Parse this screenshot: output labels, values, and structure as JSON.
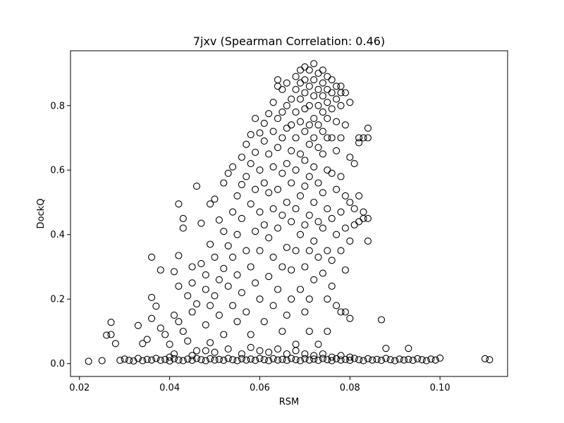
{
  "chart_data": {
    "type": "scatter",
    "title": "7jxv (Spearman Correlation: 0.46)",
    "xlabel": "RSM",
    "ylabel": "DockQ",
    "xlim": [
      0.018,
      0.115
    ],
    "ylim": [
      -0.04,
      0.97
    ],
    "xticks": [
      0.02,
      0.04,
      0.06,
      0.08,
      0.1
    ],
    "xtick_labels": [
      "0.02",
      "0.04",
      "0.06",
      "0.08",
      "0.10"
    ],
    "yticks": [
      0.0,
      0.2,
      0.4,
      0.6,
      0.8
    ],
    "ytick_labels": [
      "0.0",
      "0.2",
      "0.4",
      "0.6",
      "0.8"
    ],
    "grid": false,
    "marker": "open-circle",
    "marker_color": "#000000",
    "points": [
      [
        0.022,
        0.007
      ],
      [
        0.025,
        0.009
      ],
      [
        0.026,
        0.088
      ],
      [
        0.027,
        0.128
      ],
      [
        0.027,
        0.09
      ],
      [
        0.028,
        0.062
      ],
      [
        0.029,
        0.01
      ],
      [
        0.032,
        0.008
      ],
      [
        0.033,
        0.118
      ],
      [
        0.034,
        0.062
      ],
      [
        0.035,
        0.075
      ],
      [
        0.036,
        0.33
      ],
      [
        0.036,
        0.205
      ],
      [
        0.036,
        0.14
      ],
      [
        0.037,
        0.178
      ],
      [
        0.038,
        0.29
      ],
      [
        0.038,
        0.11
      ],
      [
        0.039,
        0.09
      ],
      [
        0.04,
        0.06
      ],
      [
        0.04,
        0.02
      ],
      [
        0.041,
        0.285
      ],
      [
        0.041,
        0.15
      ],
      [
        0.042,
        0.495
      ],
      [
        0.042,
        0.335
      ],
      [
        0.042,
        0.24
      ],
      [
        0.042,
        0.13
      ],
      [
        0.043,
        0.45
      ],
      [
        0.043,
        0.42
      ],
      [
        0.043,
        0.1
      ],
      [
        0.044,
        0.21
      ],
      [
        0.044,
        0.07
      ],
      [
        0.045,
        0.3
      ],
      [
        0.045,
        0.25
      ],
      [
        0.045,
        0.16
      ],
      [
        0.046,
        0.55
      ],
      [
        0.046,
        0.185
      ],
      [
        0.046,
        0.04
      ],
      [
        0.047,
        0.435
      ],
      [
        0.047,
        0.31
      ],
      [
        0.048,
        0.275
      ],
      [
        0.048,
        0.23
      ],
      [
        0.048,
        0.12
      ],
      [
        0.049,
        0.495
      ],
      [
        0.049,
        0.37
      ],
      [
        0.049,
        0.18
      ],
      [
        0.049,
        0.065
      ],
      [
        0.05,
        0.51
      ],
      [
        0.05,
        0.33
      ],
      [
        0.05,
        0.21
      ],
      [
        0.051,
        0.445
      ],
      [
        0.051,
        0.26
      ],
      [
        0.051,
        0.15
      ],
      [
        0.052,
        0.56
      ],
      [
        0.052,
        0.41
      ],
      [
        0.052,
        0.295
      ],
      [
        0.052,
        0.09
      ],
      [
        0.053,
        0.59
      ],
      [
        0.053,
        0.365
      ],
      [
        0.053,
        0.24
      ],
      [
        0.054,
        0.61
      ],
      [
        0.054,
        0.47
      ],
      [
        0.054,
        0.33
      ],
      [
        0.054,
        0.18
      ],
      [
        0.055,
        0.52
      ],
      [
        0.055,
        0.4
      ],
      [
        0.055,
        0.275
      ],
      [
        0.055,
        0.13
      ],
      [
        0.056,
        0.64
      ],
      [
        0.056,
        0.555
      ],
      [
        0.056,
        0.45
      ],
      [
        0.056,
        0.22
      ],
      [
        0.057,
        0.68
      ],
      [
        0.057,
        0.58
      ],
      [
        0.057,
        0.35
      ],
      [
        0.057,
        0.16
      ],
      [
        0.058,
        0.71
      ],
      [
        0.058,
        0.62
      ],
      [
        0.058,
        0.495
      ],
      [
        0.058,
        0.3
      ],
      [
        0.058,
        0.09
      ],
      [
        0.059,
        0.76
      ],
      [
        0.059,
        0.655
      ],
      [
        0.059,
        0.54
      ],
      [
        0.059,
        0.41
      ],
      [
        0.059,
        0.25
      ],
      [
        0.06,
        0.715
      ],
      [
        0.06,
        0.6
      ],
      [
        0.06,
        0.47
      ],
      [
        0.06,
        0.35
      ],
      [
        0.06,
        0.2
      ],
      [
        0.061,
        0.745
      ],
      [
        0.061,
        0.69
      ],
      [
        0.061,
        0.56
      ],
      [
        0.061,
        0.43
      ],
      [
        0.061,
        0.13
      ],
      [
        0.062,
        0.775
      ],
      [
        0.062,
        0.65
      ],
      [
        0.062,
        0.53
      ],
      [
        0.062,
        0.39
      ],
      [
        0.062,
        0.27
      ],
      [
        0.063,
        0.81
      ],
      [
        0.063,
        0.72
      ],
      [
        0.063,
        0.61
      ],
      [
        0.063,
        0.48
      ],
      [
        0.063,
        0.33
      ],
      [
        0.063,
        0.18
      ],
      [
        0.064,
        0.88
      ],
      [
        0.064,
        0.86
      ],
      [
        0.064,
        0.76
      ],
      [
        0.064,
        0.67
      ],
      [
        0.064,
        0.54
      ],
      [
        0.064,
        0.42
      ],
      [
        0.064,
        0.23
      ],
      [
        0.065,
        0.85
      ],
      [
        0.065,
        0.78
      ],
      [
        0.065,
        0.7
      ],
      [
        0.065,
        0.59
      ],
      [
        0.065,
        0.46
      ],
      [
        0.065,
        0.3
      ],
      [
        0.065,
        0.1
      ],
      [
        0.066,
        0.87
      ],
      [
        0.066,
        0.8
      ],
      [
        0.066,
        0.73
      ],
      [
        0.066,
        0.62
      ],
      [
        0.066,
        0.5
      ],
      [
        0.066,
        0.36
      ],
      [
        0.066,
        0.15
      ],
      [
        0.067,
        0.82
      ],
      [
        0.067,
        0.74
      ],
      [
        0.067,
        0.66
      ],
      [
        0.067,
        0.56
      ],
      [
        0.067,
        0.44
      ],
      [
        0.067,
        0.29
      ],
      [
        0.067,
        0.2
      ],
      [
        0.068,
        0.89
      ],
      [
        0.068,
        0.85
      ],
      [
        0.068,
        0.78
      ],
      [
        0.068,
        0.7
      ],
      [
        0.068,
        0.6
      ],
      [
        0.068,
        0.48
      ],
      [
        0.068,
        0.35
      ],
      [
        0.068,
        0.06
      ],
      [
        0.069,
        0.91
      ],
      [
        0.069,
        0.87
      ],
      [
        0.069,
        0.82
      ],
      [
        0.069,
        0.75
      ],
      [
        0.069,
        0.65
      ],
      [
        0.069,
        0.52
      ],
      [
        0.069,
        0.4
      ],
      [
        0.069,
        0.23
      ],
      [
        0.07,
        0.92
      ],
      [
        0.07,
        0.88
      ],
      [
        0.07,
        0.84
      ],
      [
        0.07,
        0.79
      ],
      [
        0.07,
        0.72
      ],
      [
        0.07,
        0.63
      ],
      [
        0.07,
        0.55
      ],
      [
        0.07,
        0.43
      ],
      [
        0.07,
        0.3
      ],
      [
        0.07,
        0.16
      ],
      [
        0.071,
        0.91
      ],
      [
        0.071,
        0.86
      ],
      [
        0.071,
        0.8
      ],
      [
        0.071,
        0.74
      ],
      [
        0.071,
        0.68
      ],
      [
        0.071,
        0.58
      ],
      [
        0.071,
        0.46
      ],
      [
        0.071,
        0.35
      ],
      [
        0.071,
        0.2
      ],
      [
        0.071,
        0.1
      ],
      [
        0.072,
        0.93
      ],
      [
        0.072,
        0.88
      ],
      [
        0.072,
        0.83
      ],
      [
        0.072,
        0.76
      ],
      [
        0.072,
        0.7
      ],
      [
        0.072,
        0.61
      ],
      [
        0.072,
        0.5
      ],
      [
        0.072,
        0.38
      ],
      [
        0.072,
        0.26
      ],
      [
        0.073,
        0.9
      ],
      [
        0.073,
        0.85
      ],
      [
        0.073,
        0.8
      ],
      [
        0.073,
        0.74
      ],
      [
        0.073,
        0.67
      ],
      [
        0.073,
        0.56
      ],
      [
        0.073,
        0.44
      ],
      [
        0.073,
        0.33
      ],
      [
        0.073,
        0.06
      ],
      [
        0.074,
        0.91
      ],
      [
        0.074,
        0.87
      ],
      [
        0.074,
        0.83
      ],
      [
        0.074,
        0.78
      ],
      [
        0.074,
        0.72
      ],
      [
        0.074,
        0.65
      ],
      [
        0.074,
        0.53
      ],
      [
        0.074,
        0.42
      ],
      [
        0.074,
        0.28
      ],
      [
        0.075,
        0.89
      ],
      [
        0.075,
        0.85
      ],
      [
        0.075,
        0.81
      ],
      [
        0.075,
        0.76
      ],
      [
        0.075,
        0.7
      ],
      [
        0.075,
        0.6
      ],
      [
        0.075,
        0.48
      ],
      [
        0.075,
        0.35
      ],
      [
        0.075,
        0.2
      ],
      [
        0.075,
        0.1
      ],
      [
        0.076,
        0.88
      ],
      [
        0.076,
        0.84
      ],
      [
        0.076,
        0.79
      ],
      [
        0.076,
        0.7
      ],
      [
        0.076,
        0.59
      ],
      [
        0.076,
        0.45
      ],
      [
        0.076,
        0.32
      ],
      [
        0.076,
        0.24
      ],
      [
        0.077,
        0.86
      ],
      [
        0.077,
        0.82
      ],
      [
        0.077,
        0.75
      ],
      [
        0.077,
        0.66
      ],
      [
        0.077,
        0.54
      ],
      [
        0.077,
        0.4
      ],
      [
        0.077,
        0.18
      ],
      [
        0.078,
        0.86
      ],
      [
        0.078,
        0.84
      ],
      [
        0.078,
        0.8
      ],
      [
        0.078,
        0.7
      ],
      [
        0.078,
        0.58
      ],
      [
        0.078,
        0.47
      ],
      [
        0.078,
        0.35
      ],
      [
        0.078,
        0.16
      ],
      [
        0.079,
        0.84
      ],
      [
        0.079,
        0.74
      ],
      [
        0.079,
        0.52
      ],
      [
        0.079,
        0.42
      ],
      [
        0.079,
        0.29
      ],
      [
        0.079,
        0.16
      ],
      [
        0.08,
        0.81
      ],
      [
        0.08,
        0.64
      ],
      [
        0.08,
        0.5
      ],
      [
        0.08,
        0.38
      ],
      [
        0.08,
        0.14
      ],
      [
        0.081,
        0.62
      ],
      [
        0.081,
        0.48
      ],
      [
        0.081,
        0.43
      ],
      [
        0.082,
        0.7
      ],
      [
        0.082,
        0.685
      ],
      [
        0.082,
        0.52
      ],
      [
        0.082,
        0.44
      ],
      [
        0.083,
        0.7
      ],
      [
        0.083,
        0.47
      ],
      [
        0.083,
        0.45
      ],
      [
        0.084,
        0.73
      ],
      [
        0.084,
        0.7
      ],
      [
        0.084,
        0.45
      ],
      [
        0.084,
        0.38
      ],
      [
        0.087,
        0.136
      ],
      [
        0.088,
        0.047
      ],
      [
        0.093,
        0.047
      ],
      [
        0.03,
        0.014
      ],
      [
        0.031,
        0.01
      ],
      [
        0.033,
        0.016
      ],
      [
        0.034,
        0.009
      ],
      [
        0.035,
        0.013
      ],
      [
        0.036,
        0.011
      ],
      [
        0.037,
        0.016
      ],
      [
        0.038,
        0.01
      ],
      [
        0.039,
        0.013
      ],
      [
        0.04,
        0.008
      ],
      [
        0.041,
        0.015
      ],
      [
        0.042,
        0.011
      ],
      [
        0.043,
        0.009
      ],
      [
        0.044,
        0.014
      ],
      [
        0.045,
        0.01
      ],
      [
        0.046,
        0.016
      ],
      [
        0.047,
        0.012
      ],
      [
        0.048,
        0.009
      ],
      [
        0.049,
        0.015
      ],
      [
        0.05,
        0.011
      ],
      [
        0.051,
        0.013
      ],
      [
        0.052,
        0.01
      ],
      [
        0.053,
        0.016
      ],
      [
        0.054,
        0.012
      ],
      [
        0.055,
        0.009
      ],
      [
        0.056,
        0.015
      ],
      [
        0.057,
        0.011
      ],
      [
        0.058,
        0.014
      ],
      [
        0.059,
        0.01
      ],
      [
        0.06,
        0.016
      ],
      [
        0.061,
        0.012
      ],
      [
        0.062,
        0.009
      ],
      [
        0.063,
        0.015
      ],
      [
        0.064,
        0.011
      ],
      [
        0.065,
        0.013
      ],
      [
        0.066,
        0.01
      ],
      [
        0.067,
        0.016
      ],
      [
        0.068,
        0.012
      ],
      [
        0.069,
        0.009
      ],
      [
        0.07,
        0.015
      ],
      [
        0.071,
        0.011
      ],
      [
        0.072,
        0.014
      ],
      [
        0.073,
        0.01
      ],
      [
        0.074,
        0.016
      ],
      [
        0.075,
        0.012
      ],
      [
        0.076,
        0.009
      ],
      [
        0.077,
        0.015
      ],
      [
        0.078,
        0.011
      ],
      [
        0.079,
        0.013
      ],
      [
        0.08,
        0.01
      ],
      [
        0.081,
        0.016
      ],
      [
        0.082,
        0.012
      ],
      [
        0.083,
        0.009
      ],
      [
        0.084,
        0.015
      ],
      [
        0.085,
        0.011
      ],
      [
        0.086,
        0.013
      ],
      [
        0.087,
        0.01
      ],
      [
        0.088,
        0.016
      ],
      [
        0.089,
        0.012
      ],
      [
        0.09,
        0.009
      ],
      [
        0.091,
        0.014
      ],
      [
        0.092,
        0.011
      ],
      [
        0.093,
        0.013
      ],
      [
        0.094,
        0.01
      ],
      [
        0.095,
        0.015
      ],
      [
        0.096,
        0.012
      ],
      [
        0.097,
        0.009
      ],
      [
        0.098,
        0.014
      ],
      [
        0.099,
        0.011
      ],
      [
        0.1,
        0.017
      ],
      [
        0.11,
        0.015
      ],
      [
        0.111,
        0.012
      ],
      [
        0.041,
        0.03
      ],
      [
        0.045,
        0.025
      ],
      [
        0.048,
        0.04
      ],
      [
        0.05,
        0.035
      ],
      [
        0.053,
        0.045
      ],
      [
        0.056,
        0.03
      ],
      [
        0.058,
        0.05
      ],
      [
        0.06,
        0.04
      ],
      [
        0.062,
        0.035
      ],
      [
        0.064,
        0.045
      ],
      [
        0.066,
        0.03
      ],
      [
        0.068,
        0.04
      ],
      [
        0.07,
        0.03
      ],
      [
        0.072,
        0.025
      ],
      [
        0.074,
        0.03
      ],
      [
        0.076,
        0.02
      ],
      [
        0.078,
        0.025
      ],
      [
        0.08,
        0.02
      ]
    ]
  }
}
